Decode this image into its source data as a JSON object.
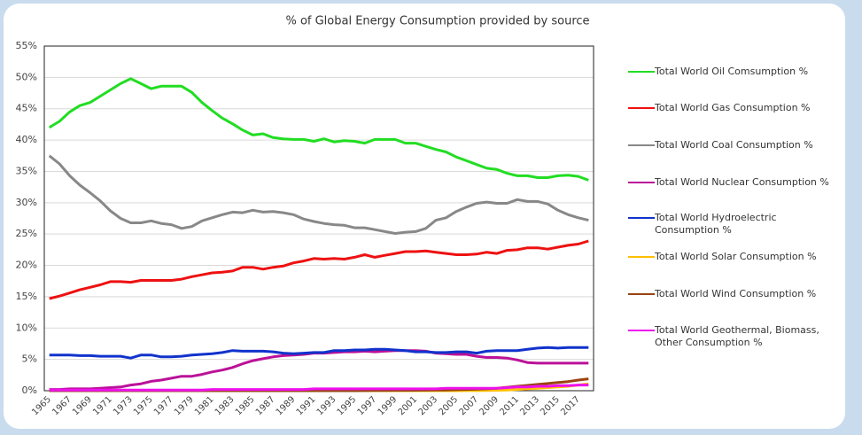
{
  "chart_data": {
    "type": "line",
    "title": "% of Global Energy Consumption provided by source",
    "categories": [
      "1965",
      null,
      "1967",
      null,
      "1969",
      null,
      "1971",
      null,
      "1973",
      null,
      "1975",
      null,
      "1977",
      null,
      "1979",
      null,
      "1981",
      null,
      "1983",
      null,
      "1985",
      null,
      "1987",
      null,
      "1989",
      null,
      "1991",
      null,
      "1993",
      null,
      "1995",
      null,
      "1997",
      null,
      "1999",
      null,
      "2001",
      null,
      "2003",
      null,
      "2005",
      null,
      "2007",
      null,
      "2009",
      null,
      "2011",
      null,
      "2013",
      null,
      "2015",
      null,
      "2017",
      null
    ],
    "ylim": [
      0,
      55
    ],
    "yticks": [
      {
        "value": 0,
        "label": "0%"
      },
      {
        "value": 5,
        "label": "5%"
      },
      {
        "value": 10,
        "label": "10%"
      },
      {
        "value": 15,
        "label": "15%"
      },
      {
        "value": 20,
        "label": "20%"
      },
      {
        "value": 25,
        "label": "25%"
      },
      {
        "value": 30,
        "label": "30%"
      },
      {
        "value": 35,
        "label": "35%"
      },
      {
        "value": 40,
        "label": "40%"
      },
      {
        "value": 45,
        "label": "45%"
      },
      {
        "value": 50,
        "label": "50%"
      },
      {
        "value": 55,
        "label": "55%"
      }
    ],
    "grid": true,
    "legend": "right",
    "series": [
      {
        "name": "Total World Oil Comsumption %",
        "color": "#22dd22",
        "values": [
          42,
          43,
          44.5,
          45.5,
          46,
          47,
          48,
          49,
          49.8,
          49,
          48.2,
          48.6,
          48.6,
          48.6,
          47.6,
          46,
          44.7,
          43.5,
          42.6,
          41.6,
          40.8,
          41,
          40.4,
          40.2,
          40.1,
          40.1,
          39.8,
          40.2,
          39.7,
          39.9,
          39.8,
          39.5,
          40.1,
          40.1,
          40.1,
          39.5,
          39.5,
          39,
          38.5,
          38.1,
          37.3,
          36.7,
          36.1,
          35.5,
          35.3,
          34.7,
          34.3,
          34.3,
          34,
          34,
          34.3,
          34.4,
          34.2,
          33.6
        ]
      },
      {
        "name": "Total World Gas Consumption %",
        "color": "#ee1111",
        "values": [
          14.7,
          15.1,
          15.6,
          16.1,
          16.5,
          16.9,
          17.4,
          17.4,
          17.3,
          17.6,
          17.6,
          17.6,
          17.6,
          17.8,
          18.2,
          18.5,
          18.8,
          18.9,
          19.1,
          19.7,
          19.7,
          19.4,
          19.7,
          19.9,
          20.4,
          20.7,
          21.1,
          21.0,
          21.1,
          21.0,
          21.3,
          21.7,
          21.3,
          21.6,
          21.9,
          22.2,
          22.2,
          22.3,
          22.1,
          21.9,
          21.7,
          21.7,
          21.8,
          22.1,
          21.9,
          22.4,
          22.5,
          22.8,
          22.8,
          22.6,
          22.9,
          23.2,
          23.4,
          23.9
        ]
      },
      {
        "name": "Total World Coal Consumption %",
        "color": "#888888",
        "values": [
          37.5,
          36.2,
          34.3,
          32.8,
          31.6,
          30.3,
          28.7,
          27.5,
          26.8,
          26.8,
          27.1,
          26.7,
          26.5,
          25.9,
          26.2,
          27.1,
          27.6,
          28.1,
          28.5,
          28.4,
          28.8,
          28.5,
          28.6,
          28.4,
          28.1,
          27.4,
          27,
          26.7,
          26.5,
          26.4,
          26,
          26,
          25.7,
          25.4,
          25.1,
          25.3,
          25.4,
          25.9,
          27.2,
          27.6,
          28.6,
          29.3,
          29.9,
          30.1,
          29.9,
          29.9,
          30.5,
          30.2,
          30.2,
          29.8,
          28.8,
          28.1,
          27.6,
          27.2
        ]
      },
      {
        "name": "Total World Nuclear Consumption %",
        "color": "#bb1199",
        "values": [
          0.2,
          0.2,
          0.3,
          0.3,
          0.3,
          0.4,
          0.5,
          0.6,
          0.9,
          1.1,
          1.5,
          1.7,
          2,
          2.3,
          2.3,
          2.6,
          3,
          3.3,
          3.7,
          4.3,
          4.8,
          5.1,
          5.4,
          5.6,
          5.7,
          5.8,
          6,
          6,
          6.1,
          6.2,
          6.2,
          6.3,
          6.2,
          6.3,
          6.4,
          6.4,
          6.4,
          6.3,
          6,
          5.9,
          5.8,
          5.8,
          5.5,
          5.3,
          5.3,
          5.2,
          4.9,
          4.5,
          4.4,
          4.4,
          4.4,
          4.4,
          4.4,
          4.4
        ]
      },
      {
        "name": "Total World Hydroelectric Consumption %",
        "color": "#1133cc",
        "values": [
          5.7,
          5.7,
          5.7,
          5.6,
          5.6,
          5.5,
          5.5,
          5.5,
          5.2,
          5.7,
          5.7,
          5.4,
          5.4,
          5.5,
          5.7,
          5.8,
          5.9,
          6.1,
          6.4,
          6.3,
          6.3,
          6.3,
          6.2,
          6,
          5.9,
          6,
          6.1,
          6.1,
          6.4,
          6.4,
          6.5,
          6.5,
          6.6,
          6.6,
          6.5,
          6.4,
          6.2,
          6.2,
          6.1,
          6.1,
          6.2,
          6.2,
          6,
          6.3,
          6.4,
          6.4,
          6.4,
          6.6,
          6.8,
          6.9,
          6.8,
          6.9,
          6.9,
          6.9
        ]
      },
      {
        "name": "Total World Solar Consumption %",
        "color": "#ffc000",
        "values": [
          0,
          0,
          0,
          0,
          0,
          0,
          0,
          0,
          0,
          0,
          0,
          0,
          0,
          0,
          0,
          0,
          0,
          0,
          0,
          0,
          0,
          0,
          0,
          0,
          0,
          0,
          0,
          0,
          0,
          0,
          0,
          0,
          0,
          0,
          0,
          0,
          0,
          0,
          0,
          0,
          0,
          0.01,
          0.02,
          0.04,
          0.07,
          0.1,
          0.2,
          0.3,
          0.4,
          0.5,
          0.6,
          0.7,
          0.9,
          1.1
        ]
      },
      {
        "name": "Total World Wind Consumption %",
        "color": "#994411",
        "values": [
          0,
          0,
          0,
          0,
          0,
          0,
          0,
          0,
          0,
          0,
          0,
          0,
          0,
          0,
          0,
          0,
          0,
          0,
          0,
          0,
          0,
          0,
          0,
          0,
          0,
          0,
          0,
          0,
          0,
          0,
          0,
          0.02,
          0.03,
          0.04,
          0.05,
          0.06,
          0.07,
          0.09,
          0.1,
          0.12,
          0.15,
          0.2,
          0.25,
          0.3,
          0.4,
          0.55,
          0.7,
          0.85,
          1.0,
          1.15,
          1.3,
          1.45,
          1.7,
          1.9
        ]
      },
      {
        "name": "Total World Geothermal, Biomass, Other Consumption %",
        "color": "#ee11ee",
        "values": [
          0.1,
          0.1,
          0.1,
          0.1,
          0.1,
          0.1,
          0.1,
          0.1,
          0.1,
          0.1,
          0.1,
          0.1,
          0.1,
          0.1,
          0.1,
          0.1,
          0.2,
          0.2,
          0.2,
          0.2,
          0.2,
          0.2,
          0.2,
          0.2,
          0.2,
          0.2,
          0.3,
          0.3,
          0.3,
          0.3,
          0.3,
          0.3,
          0.3,
          0.3,
          0.3,
          0.3,
          0.3,
          0.3,
          0.3,
          0.4,
          0.4,
          0.4,
          0.4,
          0.4,
          0.4,
          0.5,
          0.6,
          0.6,
          0.7,
          0.7,
          0.8,
          0.8,
          0.9,
          0.9
        ]
      }
    ]
  }
}
